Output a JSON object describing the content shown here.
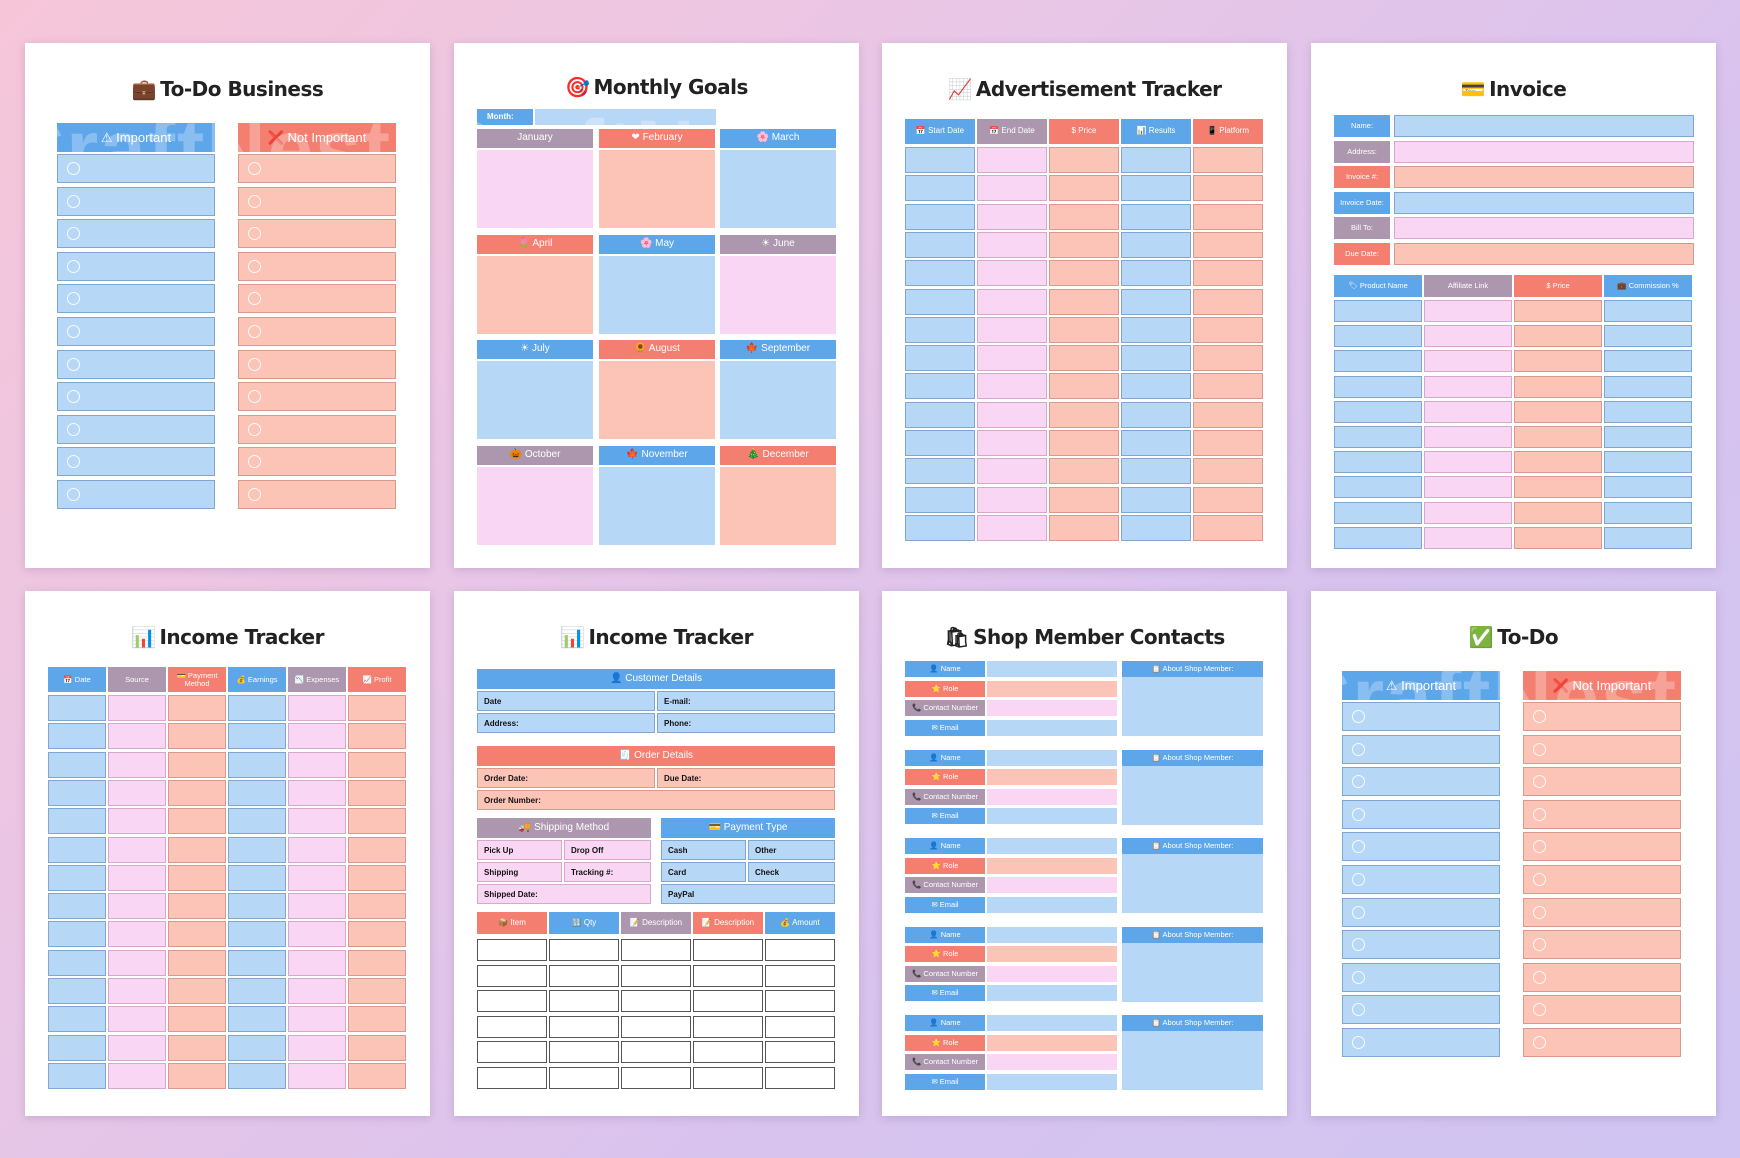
{
  "colors": {
    "blue": "#b7d7f7",
    "pink": "#f9d6f4",
    "salmon": "#fbc4b6",
    "header_blue": "#5ea6ea",
    "header_salmon": "#f47e6f",
    "header_mauve": "#ad97ae"
  },
  "watermark": "CraftNest",
  "pages": {
    "todo_business": {
      "title": "To-Do Business",
      "title_icon": "briefcase-icon",
      "icon_glyph": "💼",
      "col1": "⚠ Important",
      "col2": "❌ Not Important"
    },
    "monthly_goals": {
      "title": "Monthly Goals",
      "title_icon": "target-icon",
      "icon_glyph": "🎯",
      "month_label": "Month:",
      "months": [
        "January",
        "February",
        "March",
        "April",
        "May",
        "June",
        "July",
        "August",
        "September",
        "October",
        "November",
        "December"
      ],
      "month_icons": [
        "",
        "❤",
        "🌸",
        "🌷",
        "🌸",
        "☀",
        "☀",
        "🌻",
        "🍁",
        "🎃",
        "🍁",
        "🎄"
      ]
    },
    "ad_tracker": {
      "title": "Advertisement Tracker",
      "title_icon": "chart-up-icon",
      "icon_glyph": "📈",
      "columns": [
        "📅 Start Date",
        "📅 End Date",
        "$ Price",
        "📊 Results",
        "📱 Platform"
      ]
    },
    "invoice": {
      "title": "Invoice",
      "title_icon": "card-icon",
      "icon_glyph": "💳",
      "fields": [
        "Name:",
        "Address:",
        "Invoice #:",
        "Invoice Date:",
        "Bill To:",
        "Due Date:"
      ],
      "columns": [
        "🏷 Product Name",
        "Affiliate Link",
        "$ Price",
        "💼 Commission %"
      ]
    },
    "income_tracker_1": {
      "title": "Income Tracker",
      "title_icon": "bar-chart-icon",
      "icon_glyph": "📊",
      "columns": [
        "📅 Date",
        "Source",
        "💳 Payment Method",
        "💰 Earnings",
        "📉 Expenses",
        "📈 Profit"
      ]
    },
    "income_tracker_2": {
      "title": "Income Tracker",
      "title_icon": "bar-chart-icon",
      "icon_glyph": "📊",
      "customer_header": "👤 Customer Details",
      "customer_fields": [
        "Date",
        "E-mail:",
        "Address:",
        "Phone:"
      ],
      "order_header": "🧾 Order Details",
      "order_fields": [
        "Order Date:",
        "Due Date:",
        "Order Number:"
      ],
      "shipping_header": "🚚 Shipping Method",
      "shipping_fields": [
        "Pick Up",
        "Drop Off",
        "Shipping",
        "Tracking #:",
        "Shipped Date:"
      ],
      "payment_header": "💳 Payment Type",
      "payment_fields": [
        "Cash",
        "Other",
        "Card",
        "Check",
        "PayPal"
      ],
      "item_columns": [
        "📦 Item",
        "🔢 Qty",
        "📝 Description",
        "📝 Description",
        "💰 Amount"
      ]
    },
    "shop_contacts": {
      "title": "Shop Member Contacts",
      "title_icon": "shopping-bag-icon",
      "icon_glyph": "🛍",
      "fields": [
        "👤 Name",
        "⭐ Role",
        "📞 Contact Number",
        "✉ Email"
      ],
      "about": "📋 About Shop Member:"
    },
    "todo": {
      "title": "To-Do",
      "title_icon": "check-icon",
      "icon_glyph": "✅",
      "col1": "⚠ Important",
      "col2": "❌ Not Important"
    }
  }
}
